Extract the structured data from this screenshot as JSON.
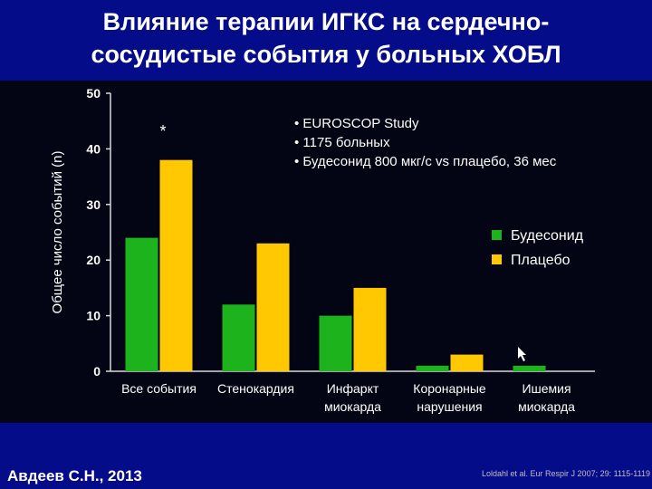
{
  "slide": {
    "title_line1": "Влияние терапии ИГКС на сердечно-",
    "title_line2": "сосудистые события у больных ХОБЛ",
    "author": "Авдеев С.Н., 2013",
    "reference": "Loldahl et al. Eur Respir J 2007; 29: 1115-1119"
  },
  "chart_data": {
    "type": "bar",
    "title": "",
    "ylabel": "Общее число событий (n)",
    "xlabel": "",
    "ylim": [
      0,
      50
    ],
    "yticks": [
      0,
      10,
      20,
      30,
      40,
      50
    ],
    "categories": [
      [
        "Все события"
      ],
      [
        "Стенокардия"
      ],
      [
        "Инфаркт",
        "миокарда"
      ],
      [
        "Коронарные",
        "нарушения"
      ],
      [
        "Ишемия",
        "миокарда"
      ]
    ],
    "series": [
      {
        "name": "Будесонид",
        "color": "#1db31d",
        "values": [
          24,
          12,
          10,
          1,
          1
        ]
      },
      {
        "name": "Плацебо",
        "color": "#ffc800",
        "values": [
          38,
          23,
          15,
          3,
          0
        ]
      }
    ],
    "annotations": [
      "*"
    ],
    "study_notes": [
      "• EUROSCOP Study",
      "• 1175 больных",
      "• Будесонид 800 мкг/с vs плацебо, 36 мес"
    ],
    "grid": false,
    "legend_position": "right"
  },
  "colors": {
    "background": "#050c8a",
    "chart_background": "#040514",
    "text": "#ffffff",
    "axis": "#d9d9d9"
  }
}
